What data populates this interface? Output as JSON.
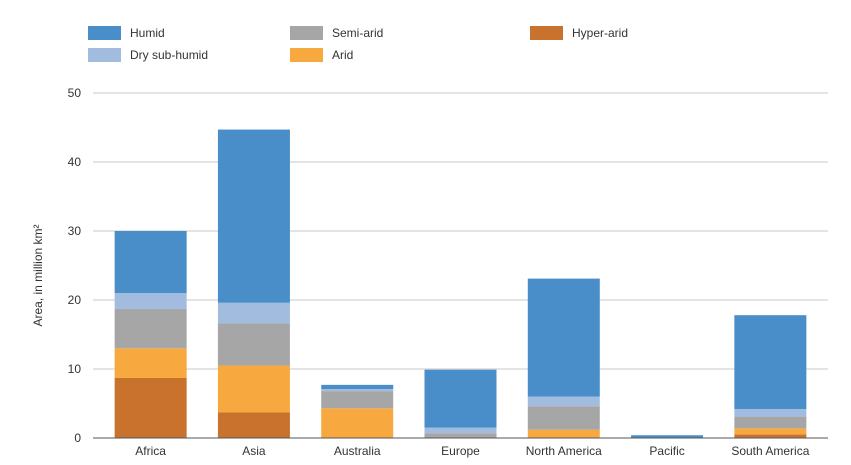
{
  "chart_data": {
    "type": "bar",
    "stacked": true,
    "ylabel": "Area, in million km²",
    "ylim": [
      0,
      50
    ],
    "yticks": [
      0,
      10,
      20,
      30,
      40,
      50
    ],
    "grid": true,
    "legend_position": "top",
    "categories": [
      "Africa",
      "Asia",
      "Australia",
      "Europe",
      "North America",
      "Pacific",
      "South America"
    ],
    "series": [
      {
        "name": "Hyper-arid",
        "color": "#c8722d",
        "values": [
          8.7,
          3.7,
          0.0,
          0.0,
          0.0,
          0.0,
          0.5
        ]
      },
      {
        "name": "Arid",
        "color": "#f7a940",
        "values": [
          4.3,
          6.8,
          4.3,
          0.0,
          1.2,
          0.0,
          0.9
        ]
      },
      {
        "name": "Semi-arid",
        "color": "#a6a6a6",
        "values": [
          5.7,
          6.1,
          2.5,
          0.7,
          3.4,
          0.0,
          1.7
        ]
      },
      {
        "name": "Dry sub-humid",
        "color": "#a2bce0",
        "values": [
          2.3,
          3.0,
          0.3,
          0.8,
          1.4,
          0.0,
          1.1
        ]
      },
      {
        "name": "Humid",
        "color": "#4a8ec9",
        "values": [
          9.0,
          25.1,
          0.6,
          8.4,
          17.1,
          0.4,
          13.6
        ]
      }
    ],
    "legend_order": [
      "Humid",
      "Semi-arid",
      "Hyper-arid",
      "Dry sub-humid",
      "Arid"
    ]
  }
}
